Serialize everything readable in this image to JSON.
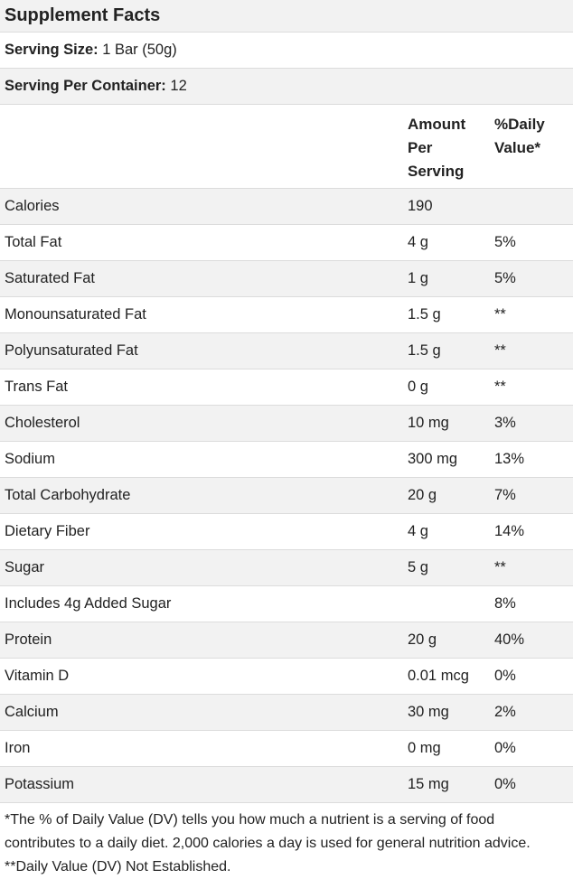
{
  "title": "Supplement Facts",
  "serving_size": {
    "label": "Serving Size:",
    "value": "1 Bar (50g)"
  },
  "servings_per_container": {
    "label": "Serving Per Container:",
    "value": "12"
  },
  "columns": {
    "amount_line1": "Amount",
    "amount_line2": "Per",
    "amount_line3": "Serving",
    "dv_line1": "%Daily",
    "dv_line2": "Value*"
  },
  "rows": [
    {
      "name": "Calories",
      "amount": "190",
      "dv": ""
    },
    {
      "name": "Total Fat",
      "amount": "4 g",
      "dv": "5%"
    },
    {
      "name": "Saturated Fat",
      "amount": "1 g",
      "dv": "5%"
    },
    {
      "name": "Monounsaturated Fat",
      "amount": "1.5 g",
      "dv": "**"
    },
    {
      "name": "Polyunsaturated Fat",
      "amount": "1.5 g",
      "dv": "**"
    },
    {
      "name": "Trans Fat",
      "amount": "0 g",
      "dv": "**"
    },
    {
      "name": "Cholesterol",
      "amount": "10 mg",
      "dv": "3%"
    },
    {
      "name": "Sodium",
      "amount": "300 mg",
      "dv": "13%"
    },
    {
      "name": "Total Carbohydrate",
      "amount": "20 g",
      "dv": "7%"
    },
    {
      "name": "Dietary Fiber",
      "amount": "4 g",
      "dv": "14%"
    },
    {
      "name": "Sugar",
      "amount": "5 g",
      "dv": "**"
    },
    {
      "name": "Includes 4g Added Sugar",
      "amount": "",
      "dv": "8%"
    },
    {
      "name": "Protein",
      "amount": "20 g",
      "dv": "40%"
    },
    {
      "name": "Vitamin D",
      "amount": "0.01 mcg",
      "dv": "0%"
    },
    {
      "name": "Calcium",
      "amount": "30 mg",
      "dv": "2%"
    },
    {
      "name": "Iron",
      "amount": "0 mg",
      "dv": "0%"
    },
    {
      "name": "Potassium",
      "amount": "15 mg",
      "dv": "0%"
    }
  ],
  "footnotes": {
    "dv_note": "*The % of Daily Value (DV) tells you how much a nutrient is a serving of food contributes to a daily diet. 2,000 calories a day is used for general nutrition advice.",
    "not_established": "**Daily Value (DV) Not Established."
  },
  "colors": {
    "shaded_row": "#f2f2f2",
    "border": "#dcdcdc",
    "text": "#222222"
  }
}
